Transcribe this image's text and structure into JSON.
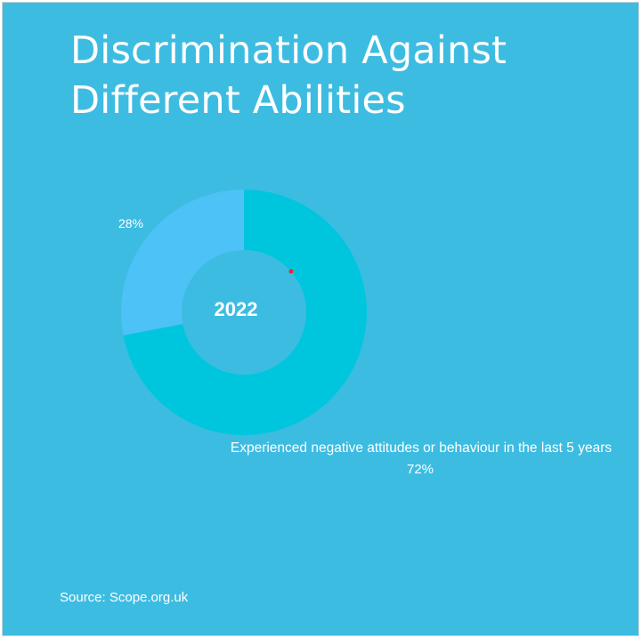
{
  "title": "Discrimination Against Different Abilities",
  "chart_data": {
    "type": "pie",
    "variant": "donut",
    "center_label": "2022",
    "slices": [
      {
        "label": "Experienced negative attitudes or behaviour in the last 5 years",
        "value": 72,
        "value_label": "72%",
        "color": "#00c6dd"
      },
      {
        "label": "",
        "value": 28,
        "value_label": "28%",
        "color": "#4cc2f7"
      }
    ],
    "legend": "none"
  },
  "source": "Source: Scope.org.uk",
  "colors": {
    "background": "#3dbce2",
    "text": "#ffffff",
    "marker": "#e8262e"
  }
}
